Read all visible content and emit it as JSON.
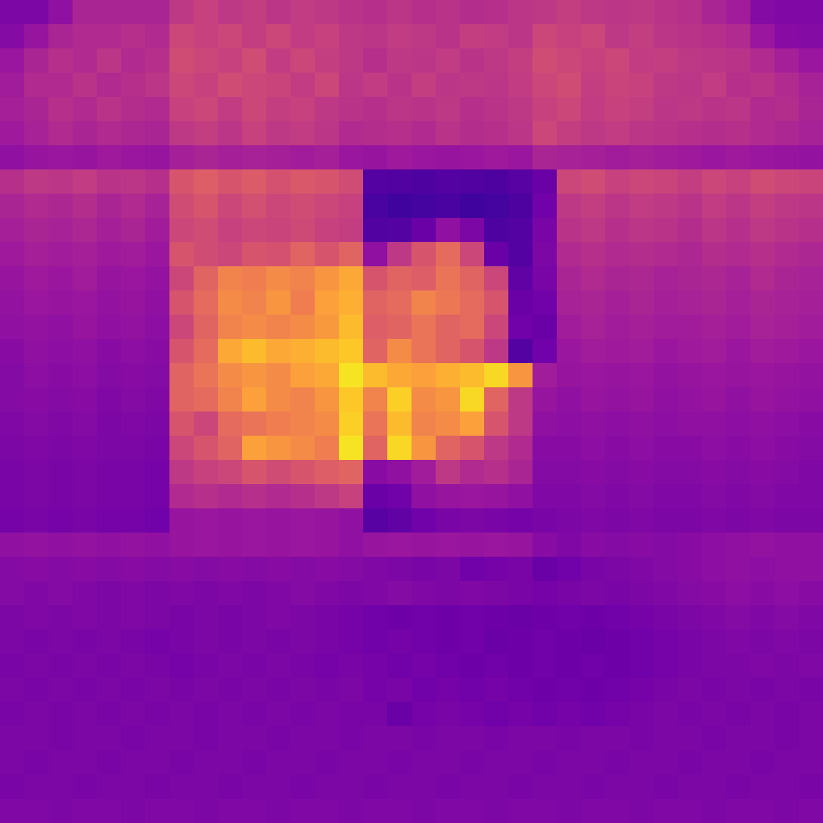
{
  "chart_data": {
    "type": "heatmap",
    "color": "plasma",
    "zlim": [
      0,
      1
    ],
    "tick_labels": false,
    "cells": [
      [
        0.25,
        0.25,
        0.3,
        0.38,
        0.38,
        0.38,
        0.38,
        0.45,
        0.48,
        0.45,
        0.47,
        0.44,
        0.46,
        0.45,
        0.43,
        0.42,
        0.44,
        0.42,
        0.43,
        0.41,
        0.42,
        0.44,
        0.45,
        0.47,
        0.45,
        0.44,
        0.45,
        0.43,
        0.42,
        0.38,
        0.35,
        0.27,
        0.26,
        0.26
      ],
      [
        0.27,
        0.32,
        0.38,
        0.4,
        0.4,
        0.42,
        0.4,
        0.5,
        0.48,
        0.5,
        0.47,
        0.5,
        0.46,
        0.48,
        0.45,
        0.44,
        0.46,
        0.45,
        0.43,
        0.47,
        0.46,
        0.44,
        0.5,
        0.48,
        0.5,
        0.45,
        0.47,
        0.44,
        0.43,
        0.42,
        0.4,
        0.33,
        0.28,
        0.27
      ],
      [
        0.33,
        0.38,
        0.42,
        0.4,
        0.44,
        0.4,
        0.42,
        0.52,
        0.5,
        0.48,
        0.52,
        0.46,
        0.5,
        0.47,
        0.45,
        0.42,
        0.45,
        0.44,
        0.46,
        0.43,
        0.45,
        0.47,
        0.52,
        0.5,
        0.48,
        0.5,
        0.46,
        0.47,
        0.45,
        0.44,
        0.43,
        0.4,
        0.36,
        0.33
      ],
      [
        0.35,
        0.4,
        0.4,
        0.43,
        0.4,
        0.42,
        0.44,
        0.5,
        0.48,
        0.52,
        0.5,
        0.49,
        0.46,
        0.5,
        0.44,
        0.46,
        0.43,
        0.47,
        0.44,
        0.45,
        0.44,
        0.46,
        0.5,
        0.52,
        0.47,
        0.49,
        0.48,
        0.45,
        0.44,
        0.46,
        0.42,
        0.43,
        0.4,
        0.37
      ],
      [
        0.36,
        0.38,
        0.42,
        0.4,
        0.43,
        0.41,
        0.4,
        0.48,
        0.5,
        0.46,
        0.5,
        0.47,
        0.48,
        0.45,
        0.43,
        0.42,
        0.44,
        0.43,
        0.45,
        0.42,
        0.43,
        0.45,
        0.48,
        0.5,
        0.46,
        0.48,
        0.47,
        0.44,
        0.45,
        0.43,
        0.44,
        0.4,
        0.41,
        0.38
      ],
      [
        0.34,
        0.37,
        0.4,
        0.38,
        0.4,
        0.39,
        0.38,
        0.45,
        0.47,
        0.44,
        0.48,
        0.45,
        0.46,
        0.44,
        0.4,
        0.41,
        0.42,
        0.4,
        0.43,
        0.41,
        0.42,
        0.44,
        0.5,
        0.47,
        0.45,
        0.46,
        0.44,
        0.43,
        0.42,
        0.41,
        0.42,
        0.4,
        0.39,
        0.37
      ],
      [
        0.3,
        0.32,
        0.33,
        0.32,
        0.34,
        0.33,
        0.32,
        0.36,
        0.38,
        0.36,
        0.37,
        0.36,
        0.35,
        0.36,
        0.33,
        0.32,
        0.34,
        0.33,
        0.32,
        0.33,
        0.34,
        0.33,
        0.38,
        0.37,
        0.36,
        0.35,
        0.36,
        0.35,
        0.34,
        0.33,
        0.34,
        0.33,
        0.32,
        0.31
      ],
      [
        0.42,
        0.45,
        0.44,
        0.46,
        0.43,
        0.44,
        0.42,
        0.55,
        0.58,
        0.55,
        0.57,
        0.54,
        0.56,
        0.55,
        0.52,
        0.15,
        0.14,
        0.13,
        0.15,
        0.14,
        0.13,
        0.16,
        0.2,
        0.5,
        0.52,
        0.48,
        0.5,
        0.49,
        0.47,
        0.5,
        0.48,
        0.52,
        0.5,
        0.49
      ],
      [
        0.38,
        0.4,
        0.39,
        0.41,
        0.38,
        0.4,
        0.37,
        0.52,
        0.55,
        0.5,
        0.53,
        0.5,
        0.52,
        0.5,
        0.48,
        0.12,
        0.1,
        0.11,
        0.12,
        0.1,
        0.11,
        0.13,
        0.22,
        0.45,
        0.47,
        0.44,
        0.46,
        0.45,
        0.43,
        0.46,
        0.44,
        0.47,
        0.45,
        0.44
      ],
      [
        0.36,
        0.38,
        0.37,
        0.39,
        0.36,
        0.38,
        0.35,
        0.5,
        0.52,
        0.48,
        0.5,
        0.49,
        0.51,
        0.48,
        0.47,
        0.14,
        0.15,
        0.2,
        0.3,
        0.25,
        0.13,
        0.15,
        0.24,
        0.43,
        0.45,
        0.42,
        0.44,
        0.43,
        0.41,
        0.44,
        0.42,
        0.45,
        0.43,
        0.42
      ],
      [
        0.34,
        0.36,
        0.35,
        0.36,
        0.34,
        0.35,
        0.33,
        0.55,
        0.52,
        0.5,
        0.55,
        0.54,
        0.6,
        0.55,
        0.6,
        0.3,
        0.45,
        0.55,
        0.62,
        0.5,
        0.2,
        0.15,
        0.25,
        0.4,
        0.42,
        0.4,
        0.41,
        0.4,
        0.39,
        0.41,
        0.4,
        0.42,
        0.4,
        0.39
      ],
      [
        0.32,
        0.34,
        0.33,
        0.35,
        0.32,
        0.33,
        0.31,
        0.5,
        0.6,
        0.7,
        0.68,
        0.72,
        0.7,
        0.75,
        0.8,
        0.55,
        0.6,
        0.58,
        0.65,
        0.6,
        0.5,
        0.18,
        0.24,
        0.38,
        0.4,
        0.38,
        0.39,
        0.37,
        0.38,
        0.39,
        0.37,
        0.4,
        0.38,
        0.37
      ],
      [
        0.31,
        0.33,
        0.32,
        0.33,
        0.31,
        0.32,
        0.3,
        0.55,
        0.62,
        0.72,
        0.7,
        0.75,
        0.68,
        0.78,
        0.82,
        0.6,
        0.62,
        0.7,
        0.66,
        0.62,
        0.55,
        0.2,
        0.22,
        0.37,
        0.38,
        0.36,
        0.38,
        0.36,
        0.37,
        0.38,
        0.36,
        0.38,
        0.37,
        0.36
      ],
      [
        0.3,
        0.31,
        0.3,
        0.32,
        0.3,
        0.31,
        0.29,
        0.5,
        0.6,
        0.7,
        0.72,
        0.7,
        0.72,
        0.76,
        0.85,
        0.58,
        0.6,
        0.65,
        0.6,
        0.62,
        0.5,
        0.22,
        0.2,
        0.35,
        0.37,
        0.35,
        0.36,
        0.35,
        0.35,
        0.36,
        0.35,
        0.37,
        0.36,
        0.35
      ],
      [
        0.28,
        0.3,
        0.29,
        0.3,
        0.28,
        0.29,
        0.28,
        0.55,
        0.62,
        0.8,
        0.85,
        0.8,
        0.82,
        0.85,
        0.88,
        0.6,
        0.72,
        0.65,
        0.6,
        0.55,
        0.45,
        0.15,
        0.22,
        0.33,
        0.35,
        0.34,
        0.35,
        0.33,
        0.34,
        0.35,
        0.33,
        0.35,
        0.34,
        0.33
      ],
      [
        0.27,
        0.29,
        0.28,
        0.29,
        0.27,
        0.28,
        0.27,
        0.6,
        0.65,
        0.72,
        0.75,
        0.72,
        0.78,
        0.8,
        0.95,
        0.85,
        0.8,
        0.78,
        0.82,
        0.85,
        0.92,
        0.75,
        0.35,
        0.32,
        0.33,
        0.32,
        0.33,
        0.31,
        0.32,
        0.33,
        0.32,
        0.33,
        0.32,
        0.31
      ],
      [
        0.27,
        0.28,
        0.27,
        0.28,
        0.26,
        0.27,
        0.26,
        0.6,
        0.62,
        0.7,
        0.78,
        0.72,
        0.7,
        0.75,
        0.88,
        0.7,
        0.9,
        0.72,
        0.75,
        0.92,
        0.6,
        0.45,
        0.32,
        0.3,
        0.32,
        0.31,
        0.32,
        0.3,
        0.31,
        0.32,
        0.3,
        0.32,
        0.31,
        0.3
      ],
      [
        0.26,
        0.27,
        0.26,
        0.27,
        0.25,
        0.26,
        0.25,
        0.55,
        0.5,
        0.62,
        0.65,
        0.68,
        0.7,
        0.72,
        0.9,
        0.65,
        0.85,
        0.7,
        0.72,
        0.78,
        0.55,
        0.45,
        0.3,
        0.29,
        0.3,
        0.29,
        0.3,
        0.29,
        0.3,
        0.3,
        0.29,
        0.3,
        0.29,
        0.28
      ],
      [
        0.25,
        0.26,
        0.25,
        0.26,
        0.25,
        0.25,
        0.24,
        0.5,
        0.55,
        0.6,
        0.78,
        0.75,
        0.72,
        0.68,
        0.95,
        0.6,
        0.92,
        0.75,
        0.6,
        0.55,
        0.45,
        0.4,
        0.28,
        0.28,
        0.29,
        0.28,
        0.29,
        0.28,
        0.28,
        0.29,
        0.28,
        0.29,
        0.28,
        0.27
      ],
      [
        0.24,
        0.25,
        0.24,
        0.25,
        0.24,
        0.24,
        0.23,
        0.45,
        0.48,
        0.5,
        0.55,
        0.52,
        0.55,
        0.58,
        0.6,
        0.28,
        0.3,
        0.35,
        0.45,
        0.4,
        0.42,
        0.38,
        0.27,
        0.27,
        0.28,
        0.27,
        0.28,
        0.27,
        0.27,
        0.28,
        0.27,
        0.28,
        0.27,
        0.26
      ],
      [
        0.24,
        0.25,
        0.24,
        0.25,
        0.24,
        0.24,
        0.23,
        0.4,
        0.42,
        0.4,
        0.42,
        0.4,
        0.42,
        0.45,
        0.48,
        0.2,
        0.22,
        0.3,
        0.32,
        0.33,
        0.32,
        0.3,
        0.26,
        0.26,
        0.27,
        0.26,
        0.27,
        0.26,
        0.26,
        0.27,
        0.26,
        0.27,
        0.26,
        0.26
      ],
      [
        0.23,
        0.24,
        0.23,
        0.24,
        0.23,
        0.23,
        0.22,
        0.32,
        0.33,
        0.32,
        0.33,
        0.32,
        0.33,
        0.32,
        0.3,
        0.16,
        0.18,
        0.22,
        0.24,
        0.25,
        0.24,
        0.23,
        0.24,
        0.25,
        0.26,
        0.25,
        0.26,
        0.25,
        0.25,
        0.26,
        0.25,
        0.26,
        0.25,
        0.25
      ],
      [
        0.3,
        0.31,
        0.3,
        0.31,
        0.3,
        0.31,
        0.3,
        0.32,
        0.33,
        0.32,
        0.33,
        0.32,
        0.33,
        0.32,
        0.3,
        0.32,
        0.33,
        0.32,
        0.33,
        0.32,
        0.33,
        0.32,
        0.28,
        0.26,
        0.28,
        0.27,
        0.28,
        0.27,
        0.28,
        0.29,
        0.3,
        0.31,
        0.3,
        0.3
      ],
      [
        0.27,
        0.28,
        0.27,
        0.28,
        0.27,
        0.28,
        0.27,
        0.28,
        0.27,
        0.28,
        0.27,
        0.28,
        0.27,
        0.28,
        0.27,
        0.26,
        0.25,
        0.24,
        0.25,
        0.22,
        0.23,
        0.24,
        0.2,
        0.22,
        0.24,
        0.25,
        0.26,
        0.27,
        0.28,
        0.29,
        0.3,
        0.29,
        0.3,
        0.3
      ],
      [
        0.27,
        0.26,
        0.27,
        0.26,
        0.25,
        0.26,
        0.25,
        0.26,
        0.25,
        0.26,
        0.25,
        0.26,
        0.27,
        0.26,
        0.25,
        0.26,
        0.27,
        0.26,
        0.25,
        0.26,
        0.25,
        0.24,
        0.23,
        0.24,
        0.25,
        0.24,
        0.25,
        0.26,
        0.27,
        0.28,
        0.29,
        0.28,
        0.29,
        0.28
      ],
      [
        0.25,
        0.26,
        0.25,
        0.26,
        0.25,
        0.26,
        0.25,
        0.24,
        0.25,
        0.24,
        0.25,
        0.26,
        0.25,
        0.24,
        0.23,
        0.22,
        0.21,
        0.22,
        0.21,
        0.22,
        0.21,
        0.2,
        0.21,
        0.22,
        0.21,
        0.22,
        0.23,
        0.24,
        0.25,
        0.26,
        0.27,
        0.26,
        0.27,
        0.26
      ],
      [
        0.25,
        0.24,
        0.25,
        0.24,
        0.25,
        0.24,
        0.23,
        0.24,
        0.25,
        0.24,
        0.25,
        0.24,
        0.25,
        0.24,
        0.23,
        0.22,
        0.23,
        0.22,
        0.21,
        0.22,
        0.2,
        0.21,
        0.22,
        0.21,
        0.2,
        0.21,
        0.22,
        0.23,
        0.24,
        0.25,
        0.26,
        0.25,
        0.26,
        0.25
      ],
      [
        0.24,
        0.25,
        0.24,
        0.25,
        0.24,
        0.25,
        0.24,
        0.23,
        0.24,
        0.25,
        0.24,
        0.25,
        0.24,
        0.23,
        0.24,
        0.23,
        0.22,
        0.23,
        0.22,
        0.21,
        0.22,
        0.21,
        0.22,
        0.21,
        0.22,
        0.21,
        0.22,
        0.23,
        0.24,
        0.25,
        0.25,
        0.26,
        0.25,
        0.26
      ],
      [
        0.25,
        0.24,
        0.25,
        0.24,
        0.25,
        0.24,
        0.25,
        0.24,
        0.25,
        0.24,
        0.25,
        0.24,
        0.25,
        0.24,
        0.25,
        0.23,
        0.24,
        0.22,
        0.23,
        0.22,
        0.23,
        0.22,
        0.21,
        0.22,
        0.21,
        0.22,
        0.23,
        0.24,
        0.25,
        0.24,
        0.25,
        0.24,
        0.25,
        0.24
      ],
      [
        0.24,
        0.25,
        0.24,
        0.25,
        0.24,
        0.25,
        0.24,
        0.25,
        0.24,
        0.25,
        0.24,
        0.25,
        0.24,
        0.25,
        0.24,
        0.24,
        0.2,
        0.23,
        0.24,
        0.23,
        0.22,
        0.23,
        0.22,
        0.23,
        0.22,
        0.23,
        0.24,
        0.25,
        0.24,
        0.25,
        0.24,
        0.25,
        0.24,
        0.25
      ],
      [
        0.25,
        0.25,
        0.24,
        0.25,
        0.25,
        0.24,
        0.25,
        0.25,
        0.24,
        0.25,
        0.25,
        0.24,
        0.25,
        0.25,
        0.24,
        0.25,
        0.25,
        0.24,
        0.25,
        0.25,
        0.24,
        0.25,
        0.25,
        0.24,
        0.25,
        0.25,
        0.24,
        0.25,
        0.25,
        0.24,
        0.25,
        0.25,
        0.24,
        0.25
      ],
      [
        0.25,
        0.24,
        0.25,
        0.25,
        0.24,
        0.25,
        0.25,
        0.24,
        0.25,
        0.25,
        0.24,
        0.25,
        0.25,
        0.24,
        0.25,
        0.25,
        0.24,
        0.25,
        0.25,
        0.24,
        0.25,
        0.25,
        0.24,
        0.25,
        0.25,
        0.24,
        0.25,
        0.25,
        0.24,
        0.25,
        0.25,
        0.24,
        0.25,
        0.25
      ],
      [
        0.24,
        0.25,
        0.25,
        0.24,
        0.25,
        0.25,
        0.24,
        0.25,
        0.25,
        0.24,
        0.25,
        0.25,
        0.24,
        0.25,
        0.25,
        0.24,
        0.25,
        0.25,
        0.24,
        0.25,
        0.25,
        0.24,
        0.25,
        0.25,
        0.24,
        0.25,
        0.25,
        0.24,
        0.25,
        0.25,
        0.24,
        0.25,
        0.25,
        0.24
      ],
      [
        0.26,
        0.26,
        0.25,
        0.26,
        0.26,
        0.25,
        0.26,
        0.26,
        0.25,
        0.26,
        0.26,
        0.25,
        0.26,
        0.26,
        0.25,
        0.26,
        0.26,
        0.25,
        0.26,
        0.26,
        0.25,
        0.26,
        0.26,
        0.25,
        0.26,
        0.26,
        0.25,
        0.26,
        0.26,
        0.25,
        0.26,
        0.26,
        0.25,
        0.26
      ]
    ]
  }
}
